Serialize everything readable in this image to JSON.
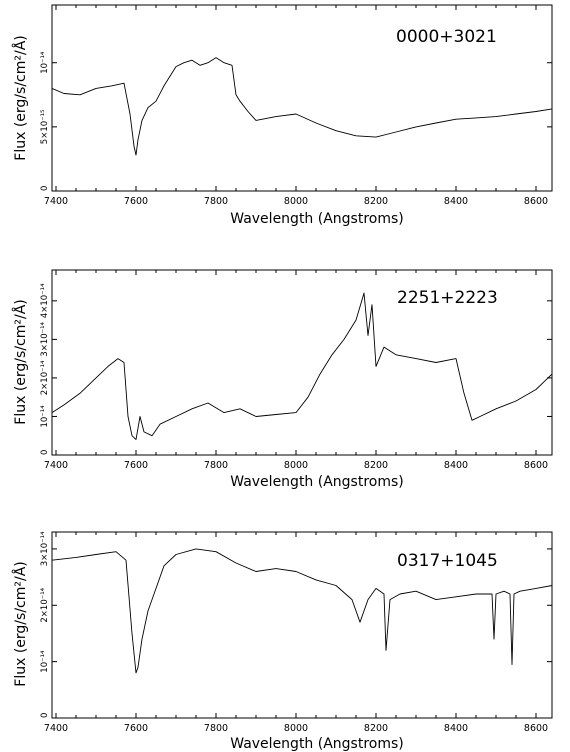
{
  "figure": {
    "panels": [
      {
        "title": "0000+3021",
        "xlabel": "Wavelength (Angstroms)",
        "ylabel": "Flux (erg/s/cm²/Å)"
      },
      {
        "title": "2251+2223",
        "xlabel": "Wavelength (Angstroms)",
        "ylabel": "Flux (erg/s/cm²/Å)"
      },
      {
        "title": "0317+1045",
        "xlabel": "Wavelength (Angstroms)",
        "ylabel": "Flux (erg/s/cm²/Å)"
      }
    ]
  },
  "chart_data": [
    {
      "type": "line",
      "title": "0000+3021",
      "xlabel": "Wavelength (Angstroms)",
      "ylabel": "Flux (erg/s/cm²/Å)",
      "xlim": [
        7390,
        8640
      ],
      "ylim": [
        0,
        1.45e-14
      ],
      "xticks": [
        7400,
        7600,
        7800,
        8000,
        8200,
        8400,
        8600
      ],
      "xtick_labels": [
        "7400",
        "7600",
        "7800",
        "8000",
        "8200",
        "8400",
        "8600"
      ],
      "yticks": [
        0,
        5e-15,
        1e-14
      ],
      "ytick_labels": [
        "0",
        "5×10⁻¹⁵",
        "10⁻¹⁴"
      ],
      "series": [
        {
          "x": [
            7390,
            7420,
            7460,
            7500,
            7540,
            7570,
            7585,
            7595,
            7600,
            7605,
            7615,
            7630,
            7650,
            7670,
            7690,
            7700,
            7720,
            7740,
            7760,
            7780,
            7800,
            7820,
            7840,
            7850,
            7860,
            7880,
            7900,
            7950,
            8000,
            8050,
            8100,
            8150,
            8200,
            8250,
            8300,
            8350,
            8400,
            8450,
            8500,
            8550,
            8600,
            8640
          ],
          "y": [
            8e-15,
            7.6e-15,
            7.5e-15,
            8e-15,
            8.2e-15,
            8.4e-15,
            6e-15,
            3.5e-15,
            2.8e-15,
            4e-15,
            5.5e-15,
            6.5e-15,
            7e-15,
            8.2e-15,
            9.2e-15,
            9.7e-15,
            1e-14,
            1.02e-14,
            9.8e-15,
            1e-14,
            1.04e-14,
            1e-14,
            9.8e-15,
            7.5e-15,
            7e-15,
            6.2e-15,
            5.5e-15,
            5.8e-15,
            6e-15,
            5.3e-15,
            4.7e-15,
            4.3e-15,
            4.2e-15,
            4.6e-15,
            5e-15,
            5.3e-15,
            5.6e-15,
            5.7e-15,
            5.8e-15,
            6e-15,
            6.2e-15,
            6.4e-15
          ]
        }
      ]
    },
    {
      "type": "line",
      "title": "2251+2223",
      "xlabel": "Wavelength (Angstroms)",
      "ylabel": "Flux (erg/s/cm²/Å)",
      "xlim": [
        7390,
        8640
      ],
      "ylim": [
        0,
        4.8e-14
      ],
      "xticks": [
        7400,
        7600,
        7800,
        8000,
        8200,
        8400,
        8600
      ],
      "xtick_labels": [
        "7400",
        "7600",
        "7800",
        "8000",
        "8200",
        "8400",
        "8600"
      ],
      "yticks": [
        0,
        1e-14,
        2e-14,
        3e-14,
        4e-14
      ],
      "ytick_labels": [
        "0",
        "10⁻¹⁴",
        "2×10⁻¹⁴",
        "3×10⁻¹⁴",
        "4×10⁻¹⁴"
      ],
      "series": [
        {
          "x": [
            7390,
            7420,
            7460,
            7500,
            7530,
            7555,
            7570,
            7580,
            7590,
            7600,
            7610,
            7620,
            7640,
            7660,
            7700,
            7740,
            7780,
            7820,
            7860,
            7900,
            7950,
            8000,
            8030,
            8060,
            8090,
            8120,
            8150,
            8170,
            8180,
            8190,
            8200,
            8220,
            8250,
            8300,
            8350,
            8400,
            8420,
            8440,
            8460,
            8500,
            8550,
            8600,
            8640
          ],
          "y": [
            1.1e-14,
            1.3e-14,
            1.6e-14,
            2e-14,
            2.3e-14,
            2.5e-14,
            2.4e-14,
            1e-14,
            5e-15,
            4e-15,
            1e-14,
            6e-15,
            5e-15,
            8e-15,
            1e-14,
            1.2e-14,
            1.35e-14,
            1.1e-14,
            1.2e-14,
            1e-14,
            1.05e-14,
            1.1e-14,
            1.5e-14,
            2.1e-14,
            2.6e-14,
            3e-14,
            3.5e-14,
            4.2e-14,
            3.1e-14,
            3.9e-14,
            2.3e-14,
            2.8e-14,
            2.6e-14,
            2.5e-14,
            2.4e-14,
            2.5e-14,
            1.6e-14,
            9e-15,
            1e-14,
            1.2e-14,
            1.4e-14,
            1.7e-14,
            2.1e-14
          ]
        }
      ]
    },
    {
      "type": "line",
      "title": "0317+1045",
      "xlabel": "Wavelength (Angstroms)",
      "ylabel": "Flux (erg/s/cm²/Å)",
      "xlim": [
        7390,
        8640
      ],
      "ylim": [
        0,
        3.3e-14
      ],
      "xticks": [
        7400,
        7600,
        7800,
        8000,
        8200,
        8400,
        8600
      ],
      "xtick_labels": [
        "7400",
        "7600",
        "7800",
        "8000",
        "8200",
        "8400",
        "8600"
      ],
      "yticks": [
        0,
        1e-14,
        2e-14,
        3e-14
      ],
      "ytick_labels": [
        "0",
        "10⁻¹⁴",
        "2×10⁻¹⁴",
        "3×10⁻¹⁴"
      ],
      "series": [
        {
          "x": [
            7390,
            7450,
            7500,
            7550,
            7575,
            7590,
            7600,
            7605,
            7615,
            7630,
            7650,
            7670,
            7700,
            7750,
            7800,
            7850,
            7900,
            7950,
            8000,
            8050,
            8100,
            8140,
            8160,
            8180,
            8200,
            8220,
            8225,
            8235,
            8260,
            8300,
            8350,
            8400,
            8450,
            8490,
            8495,
            8500,
            8520,
            8535,
            8540,
            8545,
            8560,
            8600,
            8640
          ],
          "y": [
            2.8e-14,
            2.85e-14,
            2.9e-14,
            2.95e-14,
            2.8e-14,
            1.5e-14,
            8e-15,
            9e-15,
            1.4e-14,
            1.9e-14,
            2.3e-14,
            2.7e-14,
            2.9e-14,
            3e-14,
            2.95e-14,
            2.75e-14,
            2.6e-14,
            2.65e-14,
            2.6e-14,
            2.45e-14,
            2.35e-14,
            2.1e-14,
            1.7e-14,
            2.1e-14,
            2.3e-14,
            2.2e-14,
            1.2e-14,
            2.1e-14,
            2.2e-14,
            2.25e-14,
            2.1e-14,
            2.15e-14,
            2.2e-14,
            2.2e-14,
            1.4e-14,
            2.2e-14,
            2.25e-14,
            2.2e-14,
            9.5e-15,
            2.2e-14,
            2.25e-14,
            2.3e-14,
            2.35e-14
          ]
        }
      ]
    }
  ]
}
